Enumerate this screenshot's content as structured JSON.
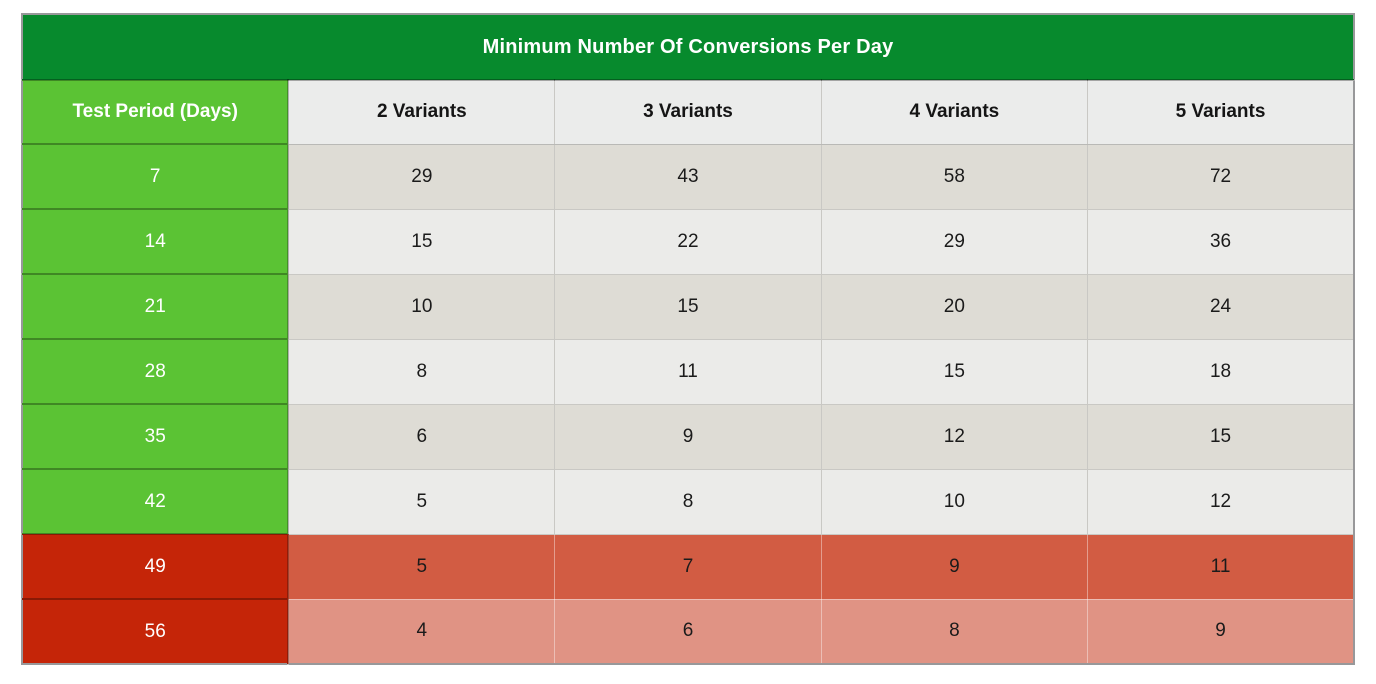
{
  "chart_data": {
    "type": "table",
    "title": "Minimum Number Of Conversions Per Day",
    "columns": [
      "Test Period (Days)",
      "2 Variants",
      "3 Variants",
      "4 Variants",
      "5 Variants"
    ],
    "rows": [
      [
        7,
        29,
        43,
        58,
        72
      ],
      [
        14,
        15,
        22,
        29,
        36
      ],
      [
        21,
        10,
        15,
        20,
        24
      ],
      [
        28,
        8,
        11,
        15,
        18
      ],
      [
        35,
        6,
        9,
        12,
        15
      ],
      [
        42,
        5,
        8,
        10,
        12
      ],
      [
        49,
        5,
        7,
        9,
        11
      ],
      [
        56,
        4,
        6,
        8,
        9
      ]
    ],
    "layout_hints": {
      "green_period_rows": [
        7,
        14,
        21,
        28,
        35,
        42
      ],
      "red_period_rows": [
        49,
        56
      ],
      "gridlines": true,
      "header_position": "top"
    }
  },
  "colors": {
    "title_bg": "#078a2d",
    "period_green": "#5bc334",
    "period_red": "#c52508",
    "row_warm_gray": "#dedcd5",
    "row_light_gray": "#ebebe9",
    "row_49_bg": "#d25c43",
    "row_56_bg": "#e09384",
    "header_gray": "#ebeceb"
  }
}
